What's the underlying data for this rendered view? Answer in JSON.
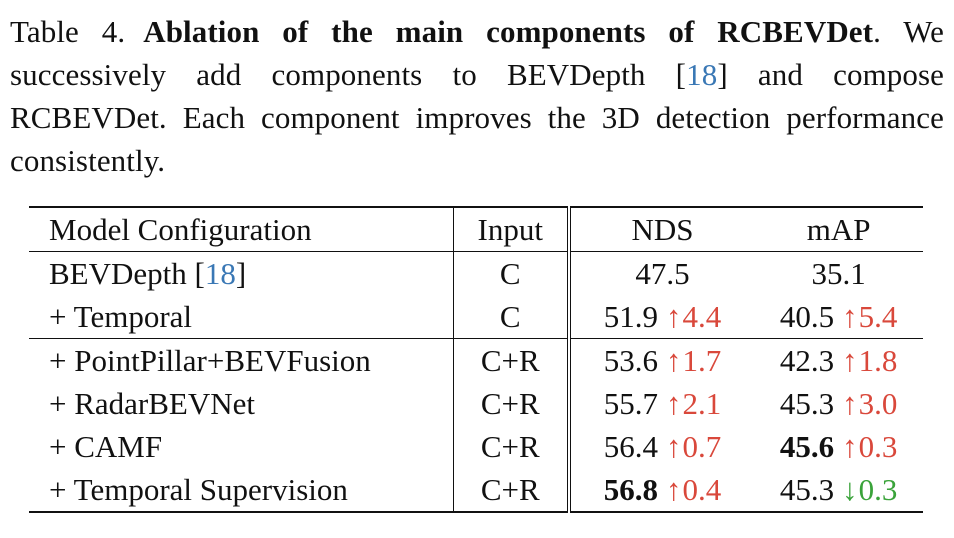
{
  "caption": {
    "label": "Table 4.",
    "title": "Ablation of the main components of RCBEVDet",
    "title_end": ".",
    "text_1": " We successively add components to BEVDepth [",
    "cite_ref": "18",
    "text_2": "] and compose RCBEVDet. Each component improves the 3D detection performance consistently."
  },
  "table": {
    "headers": {
      "config": "Model Configuration",
      "input": "Input",
      "nds": "NDS",
      "map": "mAP"
    },
    "rows": [
      {
        "config": "BEVDepth [",
        "cite": "18",
        "config_end": "]",
        "input": "C",
        "nds": "47.5",
        "nds_arrow": "",
        "nds_delta": "",
        "map": "35.1",
        "map_arrow": "",
        "map_delta": ""
      },
      {
        "config": "+ Temporal",
        "input": "C",
        "nds": "51.9",
        "nds_arrow": "↑",
        "nds_delta": "4.4",
        "map": "40.5",
        "map_arrow": "↑",
        "map_delta": "5.4"
      },
      {
        "config": "+ PointPillar+BEVFusion",
        "input": "C+R",
        "nds": "53.6",
        "nds_arrow": "↑",
        "nds_delta": "1.7",
        "map": "42.3",
        "map_arrow": "↑",
        "map_delta": "1.8"
      },
      {
        "config": "+ RadarBEVNet",
        "input": "C+R",
        "nds": "55.7",
        "nds_arrow": "↑",
        "nds_delta": "2.1",
        "map": "45.3",
        "map_arrow": "↑",
        "map_delta": "3.0"
      },
      {
        "config": "+ CAMF",
        "input": "C+R",
        "nds": "56.4",
        "nds_arrow": "↑",
        "nds_delta": "0.7",
        "map": "45.6",
        "map_arrow": "↑",
        "map_delta": "0.3"
      },
      {
        "config": "+ Temporal Supervision",
        "input": "C+R",
        "nds": "56.8",
        "nds_arrow": "↑",
        "nds_delta": "0.4",
        "map": "45.3",
        "map_arrow": "↓",
        "map_delta": "0.3"
      }
    ]
  },
  "colors": {
    "increase": "#d9483b",
    "decrease": "#3aa33a",
    "citation": "#3a78b5"
  }
}
